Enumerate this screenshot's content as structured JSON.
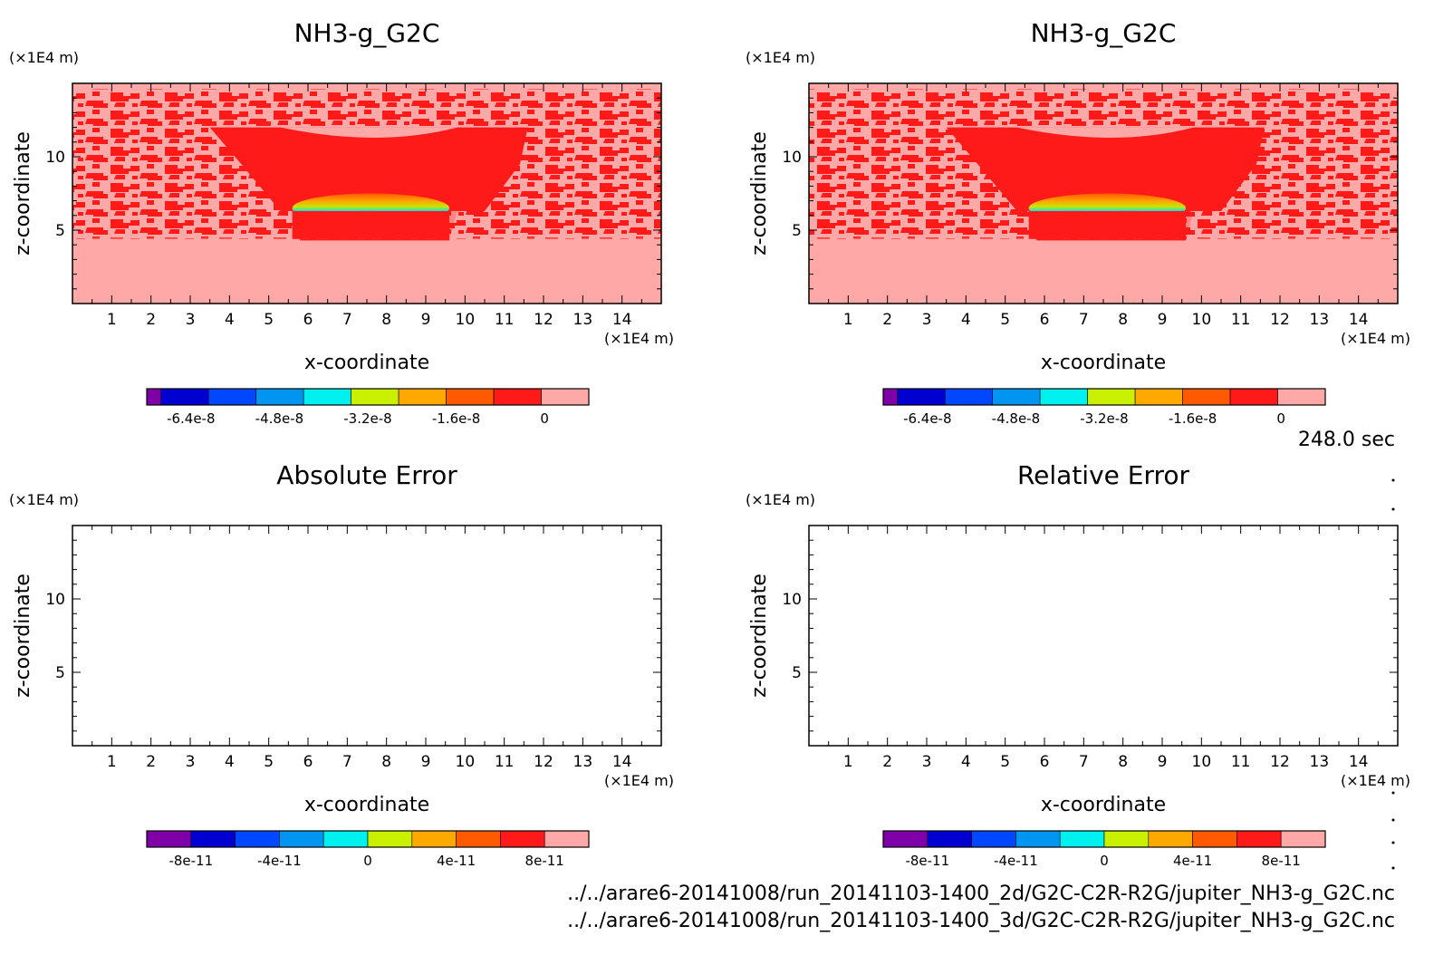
{
  "footer": {
    "time_label": "248.0 sec",
    "file_lines": [
      "../../arare6-20141008/run_20141103-1400_2d/G2C-C2R-R2G/jupiter_NH3-g_G2C.nc",
      "../../arare6-20141008/run_20141103-1400_3d/G2C-C2R-R2G/jupiter_NH3-g_G2C.nc"
    ]
  },
  "colors": {
    "palette": [
      "#7f00a8",
      "#0000d0",
      "#0048ff",
      "#0095f0",
      "#00f0f0",
      "#c8f000",
      "#ffa800",
      "#ff5a00",
      "#ff1a1a",
      "#ffa8a8"
    ],
    "background_fill": "#ffa8a8",
    "band_fill": "#ff1a1a"
  },
  "chart_data": [
    {
      "type": "heatmap",
      "title": "NH3-g_G2C",
      "xlabel": "x-coordinate",
      "ylabel": "z-coordinate",
      "x_unit": "(×1E4 m)",
      "y_unit": "(×1E4 m)",
      "xlim": [
        0,
        15
      ],
      "ylim": [
        0,
        15
      ],
      "x_ticks": [
        1,
        2,
        3,
        4,
        5,
        6,
        7,
        8,
        9,
        10,
        11,
        12,
        13,
        14
      ],
      "y_ticks": [
        5,
        10
      ],
      "colorbar": {
        "ticks": [
          "-6.4e-8",
          "-4.8e-8",
          "-3.2e-8",
          "-1.6e-8",
          "0"
        ],
        "range": [
          -7.2e-08,
          8e-09
        ],
        "levels": 10
      },
      "filled": true
    },
    {
      "type": "heatmap",
      "title": "NH3-g_G2C",
      "xlabel": "x-coordinate",
      "ylabel": "z-coordinate",
      "x_unit": "(×1E4 m)",
      "y_unit": "(×1E4 m)",
      "xlim": [
        0,
        15
      ],
      "ylim": [
        0,
        15
      ],
      "x_ticks": [
        1,
        2,
        3,
        4,
        5,
        6,
        7,
        8,
        9,
        10,
        11,
        12,
        13,
        14
      ],
      "y_ticks": [
        5,
        10
      ],
      "colorbar": {
        "ticks": [
          "-6.4e-8",
          "-4.8e-8",
          "-3.2e-8",
          "-1.6e-8",
          "0"
        ],
        "range": [
          -7.2e-08,
          8e-09
        ],
        "levels": 10
      },
      "filled": true
    },
    {
      "type": "heatmap",
      "title": "Absolute Error",
      "xlabel": "x-coordinate",
      "ylabel": "z-coordinate",
      "x_unit": "(×1E4 m)",
      "y_unit": "(×1E4 m)",
      "xlim": [
        0,
        15
      ],
      "ylim": [
        0,
        15
      ],
      "x_ticks": [
        1,
        2,
        3,
        4,
        5,
        6,
        7,
        8,
        9,
        10,
        11,
        12,
        13,
        14
      ],
      "y_ticks": [
        5,
        10
      ],
      "colorbar": {
        "ticks": [
          "-8e-11",
          "-4e-11",
          "0",
          "4e-11",
          "8e-11"
        ],
        "range": [
          -1e-10,
          1e-10
        ],
        "levels": 10
      },
      "filled": false
    },
    {
      "type": "heatmap",
      "title": "Relative Error",
      "xlabel": "x-coordinate",
      "ylabel": "z-coordinate",
      "x_unit": "(×1E4 m)",
      "y_unit": "(×1E4 m)",
      "xlim": [
        0,
        15
      ],
      "ylim": [
        0,
        15
      ],
      "x_ticks": [
        1,
        2,
        3,
        4,
        5,
        6,
        7,
        8,
        9,
        10,
        11,
        12,
        13,
        14
      ],
      "y_ticks": [
        5,
        10
      ],
      "colorbar": {
        "ticks": [
          "-8e-11",
          "-4e-11",
          "0",
          "4e-11",
          "8e-11"
        ],
        "range": [
          -1e-10,
          1e-10
        ],
        "levels": 10
      },
      "filled": false
    }
  ]
}
